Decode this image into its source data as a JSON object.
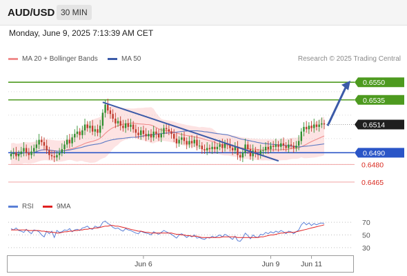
{
  "header": {
    "pair": "AUD/USD",
    "timeframe": "30 MIN"
  },
  "timestamp": "Monday, June 9, 2025 7:13:39 AM CET",
  "legend": {
    "bb_label": "MA 20 + Bollinger Bands",
    "ma50_label": "MA 50",
    "credit": "Research © 2025 Trading Central",
    "rsi_label": "RSI",
    "rsi_ma_label": "9MA"
  },
  "colors": {
    "resistance": "#4d9a1f",
    "support": "#2a55c7",
    "minor_support": "#f1a3a3",
    "minor_support_label": "#d9291f",
    "up_candle": "#2f8f2f",
    "down_candle": "#c0392b",
    "trendline": "#3b5aa8",
    "bb_fill": "#fde3e3",
    "ma20": "#f08c8c",
    "ma50": "#5b78c4",
    "rsi": "#5a7fd6",
    "rsi_ma": "#e02020"
  },
  "chart_data": {
    "type": "candlestick",
    "title": "AUD/USD",
    "interval": "30 MIN",
    "y_range": [
      0.6452,
      0.6566
    ],
    "current_price": 0.6514,
    "levels": [
      {
        "value": 0.655,
        "label": "0.6550",
        "kind": "resistance"
      },
      {
        "value": 0.6535,
        "label": "0.6535",
        "kind": "resistance"
      },
      {
        "value": 0.649,
        "label": "0.6490",
        "kind": "support"
      },
      {
        "value": 0.648,
        "label": "0.6480",
        "kind": "minor_support"
      },
      {
        "value": 0.6465,
        "label": "0.6465",
        "kind": "minor_support"
      }
    ],
    "x_ticks": [
      "Jun 6",
      "Jun 9",
      "Jun 11"
    ],
    "close": [
      0.6489,
      0.649,
      0.6487,
      0.6489,
      0.6491,
      0.6494,
      0.649,
      0.6488,
      0.6491,
      0.6494,
      0.6497,
      0.6501,
      0.6499,
      0.6496,
      0.6492,
      0.6488,
      0.6487,
      0.6486,
      0.6488,
      0.649,
      0.6493,
      0.6497,
      0.6501,
      0.6498,
      0.6503,
      0.6506,
      0.6508,
      0.6505,
      0.6509,
      0.6514,
      0.6511,
      0.6513,
      0.6508,
      0.651,
      0.6507,
      0.6513,
      0.6524,
      0.6531,
      0.6526,
      0.6523,
      0.6519,
      0.6515,
      0.6517,
      0.6513,
      0.6511,
      0.6515,
      0.6512,
      0.6514,
      0.651,
      0.6507,
      0.6505,
      0.6509,
      0.6506,
      0.6504,
      0.6506,
      0.6503,
      0.6508,
      0.6506,
      0.6503,
      0.6506,
      0.6511,
      0.651,
      0.6508,
      0.6506,
      0.6502,
      0.6498,
      0.6501,
      0.6503,
      0.65,
      0.6497,
      0.65,
      0.6498,
      0.6501,
      0.6496,
      0.6496,
      0.6493,
      0.6492,
      0.6494,
      0.6493,
      0.6495,
      0.6493,
      0.6495,
      0.6497,
      0.6494,
      0.6498,
      0.6497,
      0.6494,
      0.6492,
      0.6495,
      0.6488,
      0.6486,
      0.649,
      0.6497,
      0.6493,
      0.6487,
      0.6492,
      0.6489,
      0.6488,
      0.6492,
      0.6492,
      0.6495,
      0.6493,
      0.6496,
      0.6495,
      0.6497,
      0.6495,
      0.6498,
      0.6496,
      0.6494,
      0.6497,
      0.6496,
      0.6494,
      0.6496,
      0.65,
      0.6508,
      0.6512,
      0.651,
      0.6513,
      0.6511,
      0.6514,
      0.6512,
      0.6514,
      0.6515,
      0.6514
    ],
    "trendline": {
      "from": [
        0,
        0.6533
      ],
      "to": [
        1,
        0.6483
      ]
    },
    "projection": {
      "from": 0.6513,
      "to": 0.6549
    },
    "rsi_ticks": [
      70,
      50,
      30
    ],
    "rsi_values": [
      60,
      58,
      61,
      57,
      56,
      54,
      59,
      55,
      52,
      58,
      57,
      55,
      50,
      47,
      56,
      52,
      56,
      46,
      57,
      54,
      55,
      58,
      57,
      60,
      55,
      58,
      59,
      57,
      61,
      62,
      64,
      60,
      59,
      64,
      62,
      63,
      70,
      72,
      68,
      66,
      62,
      60,
      61,
      58,
      56,
      60,
      58,
      57,
      55,
      53,
      52,
      56,
      54,
      53,
      52,
      50,
      55,
      53,
      51,
      54,
      57,
      55,
      53,
      51,
      48,
      45,
      50,
      52,
      49,
      46,
      49,
      47,
      50,
      45,
      46,
      44,
      43,
      46,
      45,
      48,
      46,
      48,
      50,
      47,
      51,
      49,
      46,
      43,
      48,
      41,
      40,
      45,
      53,
      49,
      44,
      50,
      47,
      46,
      51,
      50,
      54,
      52,
      55,
      53,
      56,
      54,
      57,
      55,
      52,
      56,
      55,
      52,
      55,
      58,
      66,
      70,
      66,
      69,
      65,
      68,
      66,
      68,
      69,
      68
    ],
    "rsi_ma_values": [
      58,
      58,
      58,
      58,
      58,
      58,
      58,
      57,
      57,
      57,
      57,
      57,
      56,
      56,
      55,
      55,
      54,
      54,
      53,
      53,
      54,
      55,
      55,
      56,
      56,
      57,
      57,
      58,
      58,
      59,
      59,
      60,
      60,
      61,
      61,
      62,
      63,
      64,
      64,
      65,
      65,
      64,
      64,
      63,
      62,
      61,
      60,
      59,
      58,
      57,
      56,
      56,
      55,
      54,
      54,
      53,
      53,
      53,
      53,
      53,
      53,
      53,
      53,
      53,
      52,
      51,
      51,
      50,
      50,
      49,
      49,
      48,
      48,
      48,
      47,
      46,
      46,
      46,
      46,
      46,
      46,
      46,
      46,
      47,
      47,
      47,
      47,
      47,
      47,
      46,
      46,
      46,
      46,
      46,
      46,
      46,
      46,
      46,
      47,
      47,
      48,
      49,
      50,
      50,
      51,
      52,
      53,
      53,
      54,
      54,
      54,
      54,
      55,
      56,
      57,
      58,
      59,
      60,
      61,
      62,
      63,
      64,
      65,
      66
    ]
  }
}
